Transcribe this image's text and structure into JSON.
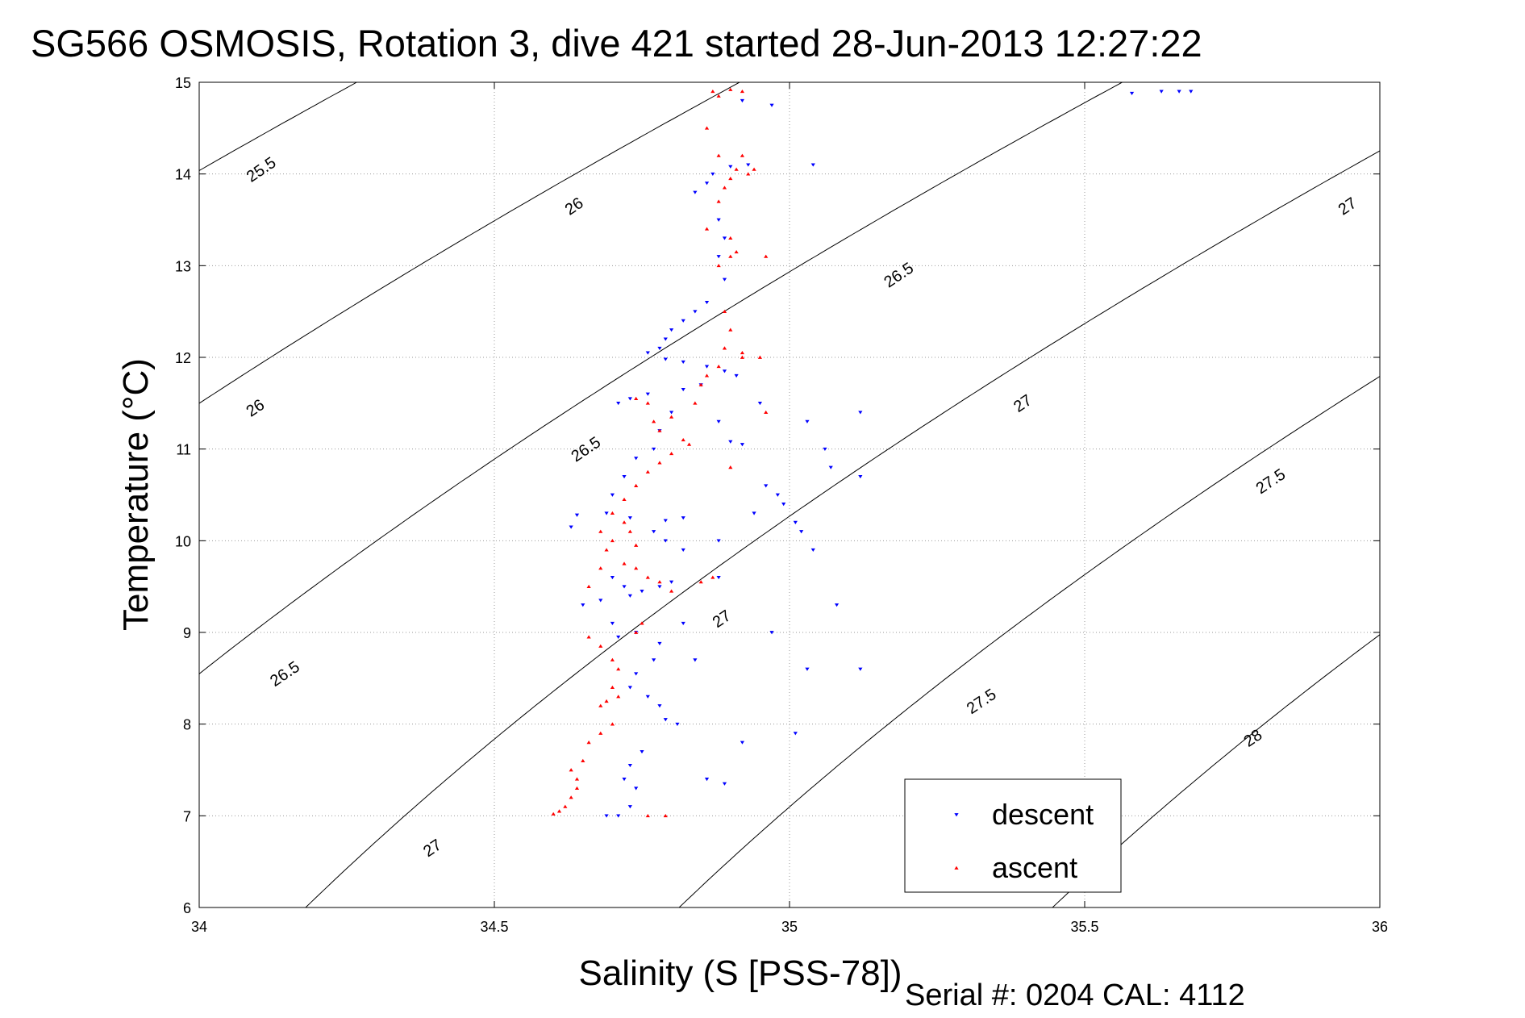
{
  "chart_data": {
    "type": "scatter",
    "title": "SG566 OSMOSIS, Rotation 3, dive 421 started 28-Jun-2013 12:27:22",
    "xlabel": "Salinity (S [PSS-78])",
    "ylabel": "Temperature (°C)",
    "footer": "Serial #: 0204  CAL: 4112",
    "xlim": [
      34,
      36
    ],
    "ylim": [
      6,
      15
    ],
    "xticks": [
      "34",
      "34.5",
      "35",
      "35.5",
      "36"
    ],
    "yticks": [
      "6",
      "7",
      "8",
      "9",
      "10",
      "11",
      "12",
      "13",
      "14",
      "15"
    ],
    "grid": true,
    "legend": "lower-right",
    "colors": {
      "descent": "#0000ff",
      "ascent": "#ff0000",
      "contour": "#000000"
    },
    "density_contours": [
      25.5,
      26,
      26.5,
      27,
      27.5,
      28
    ],
    "contour_labels": [
      {
        "label": "25.5",
        "s": 34.11,
        "t": 14.0
      },
      {
        "label": "26",
        "s": 34.64,
        "t": 13.6
      },
      {
        "label": "26",
        "s": 34.1,
        "t": 11.4
      },
      {
        "label": "26.5",
        "s": 35.19,
        "t": 12.85
      },
      {
        "label": "26.5",
        "s": 34.66,
        "t": 10.95
      },
      {
        "label": "26.5",
        "s": 34.15,
        "t": 8.5
      },
      {
        "label": "27",
        "s": 35.95,
        "t": 13.6
      },
      {
        "label": "27",
        "s": 35.4,
        "t": 11.45
      },
      {
        "label": "27",
        "s": 34.89,
        "t": 9.1
      },
      {
        "label": "27",
        "s": 34.4,
        "t": 6.6
      },
      {
        "label": "27.5",
        "s": 35.82,
        "t": 10.6
      },
      {
        "label": "27.5",
        "s": 35.33,
        "t": 8.2
      },
      {
        "label": "28",
        "s": 35.79,
        "t": 7.8
      }
    ],
    "series": [
      {
        "name": "descent",
        "marker": "triangle-down",
        "points": [
          [
            35.58,
            14.88
          ],
          [
            35.63,
            14.9
          ],
          [
            35.66,
            14.9
          ],
          [
            35.68,
            14.9
          ],
          [
            34.97,
            14.75
          ],
          [
            34.92,
            14.8
          ],
          [
            34.9,
            14.08
          ],
          [
            34.93,
            14.1
          ],
          [
            34.87,
            14.0
          ],
          [
            34.86,
            13.9
          ],
          [
            34.84,
            13.8
          ],
          [
            35.04,
            14.1
          ],
          [
            34.88,
            13.5
          ],
          [
            34.89,
            13.3
          ],
          [
            34.88,
            13.1
          ],
          [
            34.89,
            12.85
          ],
          [
            34.86,
            12.6
          ],
          [
            34.84,
            12.5
          ],
          [
            34.82,
            12.4
          ],
          [
            34.8,
            12.3
          ],
          [
            34.79,
            12.2
          ],
          [
            34.78,
            12.1
          ],
          [
            34.76,
            12.05
          ],
          [
            34.79,
            11.98
          ],
          [
            34.82,
            11.95
          ],
          [
            34.86,
            11.9
          ],
          [
            34.89,
            11.85
          ],
          [
            34.91,
            11.8
          ],
          [
            34.85,
            11.7
          ],
          [
            34.82,
            11.65
          ],
          [
            34.76,
            11.6
          ],
          [
            34.73,
            11.55
          ],
          [
            34.71,
            11.5
          ],
          [
            34.8,
            11.4
          ],
          [
            34.78,
            11.2
          ],
          [
            34.77,
            11.0
          ],
          [
            34.74,
            10.9
          ],
          [
            34.72,
            10.7
          ],
          [
            34.7,
            10.5
          ],
          [
            34.69,
            10.3
          ],
          [
            34.64,
            10.28
          ],
          [
            34.63,
            10.15
          ],
          [
            34.73,
            10.25
          ],
          [
            34.79,
            10.22
          ],
          [
            34.82,
            10.25
          ],
          [
            34.77,
            10.1
          ],
          [
            34.79,
            10.0
          ],
          [
            34.82,
            9.9
          ],
          [
            34.7,
            9.6
          ],
          [
            34.72,
            9.5
          ],
          [
            34.75,
            9.45
          ],
          [
            34.78,
            9.5
          ],
          [
            34.8,
            9.55
          ],
          [
            34.65,
            9.3
          ],
          [
            34.68,
            9.35
          ],
          [
            34.73,
            9.4
          ],
          [
            34.74,
            9.0
          ],
          [
            34.71,
            8.95
          ],
          [
            34.7,
            9.1
          ],
          [
            34.78,
            8.88
          ],
          [
            34.77,
            8.7
          ],
          [
            34.74,
            8.55
          ],
          [
            34.73,
            8.4
          ],
          [
            34.76,
            8.3
          ],
          [
            34.78,
            8.2
          ],
          [
            34.79,
            8.05
          ],
          [
            34.81,
            8.0
          ],
          [
            34.75,
            7.7
          ],
          [
            34.73,
            7.55
          ],
          [
            34.72,
            7.4
          ],
          [
            34.74,
            7.3
          ],
          [
            34.73,
            7.1
          ],
          [
            34.71,
            7.0
          ],
          [
            34.69,
            7.0
          ],
          [
            34.88,
            11.3
          ],
          [
            34.9,
            11.08
          ],
          [
            34.92,
            11.05
          ],
          [
            34.96,
            10.6
          ],
          [
            34.99,
            10.4
          ],
          [
            34.94,
            10.3
          ],
          [
            34.98,
            10.5
          ],
          [
            35.01,
            10.2
          ],
          [
            35.03,
            11.3
          ],
          [
            35.06,
            11.0
          ],
          [
            35.07,
            10.8
          ],
          [
            35.12,
            10.7
          ],
          [
            35.04,
            9.9
          ],
          [
            35.08,
            9.3
          ],
          [
            35.02,
            10.1
          ],
          [
            34.95,
            11.5
          ],
          [
            35.12,
            11.4
          ],
          [
            35.01,
            7.9
          ],
          [
            35.03,
            8.6
          ],
          [
            35.12,
            8.6
          ],
          [
            34.88,
            10.0
          ],
          [
            34.97,
            9.0
          ],
          [
            34.92,
            7.8
          ],
          [
            34.86,
            7.4
          ],
          [
            34.89,
            7.35
          ],
          [
            34.84,
            8.7
          ],
          [
            34.82,
            9.1
          ],
          [
            34.88,
            9.6
          ]
        ]
      },
      {
        "name": "ascent",
        "marker": "triangle-up",
        "points": [
          [
            34.87,
            14.9
          ],
          [
            34.9,
            14.92
          ],
          [
            34.92,
            14.9
          ],
          [
            34.88,
            14.85
          ],
          [
            34.86,
            14.5
          ],
          [
            34.88,
            14.2
          ],
          [
            34.91,
            14.05
          ],
          [
            34.93,
            14.0
          ],
          [
            34.9,
            13.95
          ],
          [
            34.89,
            13.85
          ],
          [
            34.88,
            13.7
          ],
          [
            34.9,
            13.3
          ],
          [
            34.91,
            13.15
          ],
          [
            34.9,
            13.1
          ],
          [
            34.88,
            13.0
          ],
          [
            34.96,
            13.1
          ],
          [
            34.89,
            12.5
          ],
          [
            34.9,
            12.3
          ],
          [
            34.89,
            12.1
          ],
          [
            34.92,
            12.05
          ],
          [
            34.95,
            12.0
          ],
          [
            34.88,
            11.9
          ],
          [
            34.86,
            11.8
          ],
          [
            34.85,
            11.7
          ],
          [
            34.84,
            11.5
          ],
          [
            34.8,
            11.35
          ],
          [
            34.77,
            11.3
          ],
          [
            34.74,
            11.55
          ],
          [
            34.76,
            11.5
          ],
          [
            34.78,
            11.2
          ],
          [
            34.82,
            11.1
          ],
          [
            34.83,
            11.05
          ],
          [
            34.8,
            10.95
          ],
          [
            34.78,
            10.85
          ],
          [
            34.76,
            10.75
          ],
          [
            34.74,
            10.6
          ],
          [
            34.72,
            10.45
          ],
          [
            34.7,
            10.3
          ],
          [
            34.68,
            10.1
          ],
          [
            34.7,
            10.0
          ],
          [
            34.72,
            10.2
          ],
          [
            34.73,
            10.1
          ],
          [
            34.69,
            9.9
          ],
          [
            34.68,
            9.7
          ],
          [
            34.66,
            9.5
          ],
          [
            34.72,
            9.75
          ],
          [
            34.74,
            9.7
          ],
          [
            34.76,
            9.6
          ],
          [
            34.78,
            9.55
          ],
          [
            34.75,
            9.1
          ],
          [
            34.74,
            9.0
          ],
          [
            34.66,
            8.95
          ],
          [
            34.68,
            8.85
          ],
          [
            34.7,
            8.7
          ],
          [
            34.71,
            8.6
          ],
          [
            34.7,
            8.4
          ],
          [
            34.69,
            8.25
          ],
          [
            34.68,
            8.2
          ],
          [
            34.71,
            8.3
          ],
          [
            34.7,
            8.0
          ],
          [
            34.66,
            7.8
          ],
          [
            34.65,
            7.6
          ],
          [
            34.64,
            7.4
          ],
          [
            34.63,
            7.2
          ],
          [
            34.62,
            7.1
          ],
          [
            34.61,
            7.05
          ],
          [
            34.6,
            7.02
          ],
          [
            34.64,
            7.3
          ],
          [
            34.76,
            7.0
          ],
          [
            34.79,
            7.0
          ],
          [
            34.92,
            12.0
          ],
          [
            34.96,
            11.4
          ],
          [
            34.9,
            10.8
          ],
          [
            34.87,
            9.6
          ],
          [
            34.85,
            9.55
          ],
          [
            34.8,
            9.45
          ],
          [
            34.74,
            9.95
          ],
          [
            34.68,
            7.9
          ],
          [
            34.63,
            7.5
          ],
          [
            34.94,
            14.05
          ],
          [
            34.92,
            14.2
          ],
          [
            34.86,
            13.4
          ]
        ]
      }
    ]
  }
}
